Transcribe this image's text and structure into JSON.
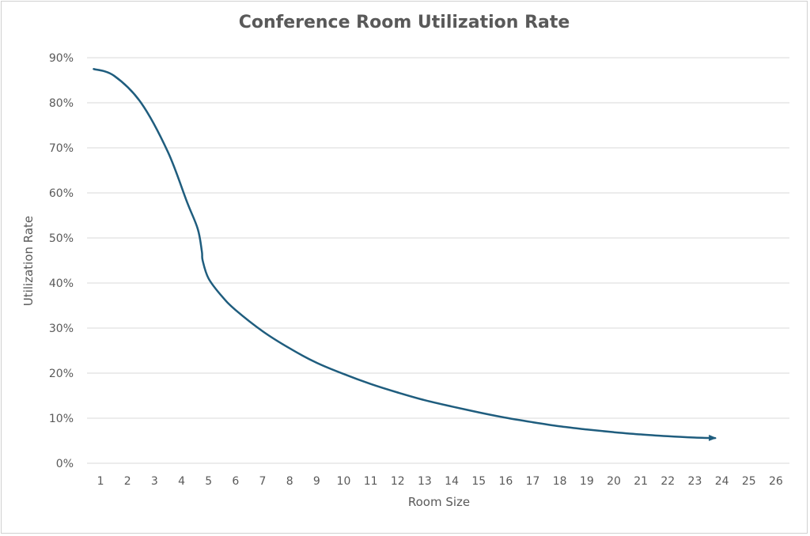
{
  "chart_data": {
    "type": "line",
    "title": "Conference Room Utilization Rate",
    "xlabel": "Room Size",
    "ylabel": "Utilization Rate",
    "x_categories": [
      "1",
      "2",
      "3",
      "4",
      "5",
      "6",
      "7",
      "8",
      "9",
      "10",
      "11",
      "12",
      "13",
      "14",
      "15",
      "16",
      "17",
      "18",
      "19",
      "20",
      "21",
      "22",
      "23",
      "24",
      "25",
      "26"
    ],
    "y_ticks": [
      "0%",
      "10%",
      "20%",
      "30%",
      "40%",
      "50%",
      "60%",
      "70%",
      "80%",
      "90%"
    ],
    "ylim": [
      0,
      90
    ],
    "grid": "horizontal",
    "legend": "none",
    "series": [
      {
        "color": "#1f5d7e",
        "end_marker": "arrow",
        "x": [
          0.75,
          1.5,
          2.5,
          3.5,
          4.2,
          4.6,
          4.75,
          4.78,
          5,
          5.5,
          6,
          7,
          8,
          9,
          10,
          11,
          12,
          13,
          14,
          15,
          16,
          17,
          18,
          19,
          20,
          21,
          22,
          23,
          23.75
        ],
        "y": [
          87.5,
          86,
          80,
          69,
          58,
          52,
          47,
          45,
          41,
          37,
          34,
          29.3,
          25.5,
          22.3,
          19.8,
          17.6,
          15.7,
          14,
          12.6,
          11.3,
          10.1,
          9.1,
          8.2,
          7.5,
          6.9,
          6.4,
          6,
          5.7,
          5.6
        ]
      }
    ]
  }
}
